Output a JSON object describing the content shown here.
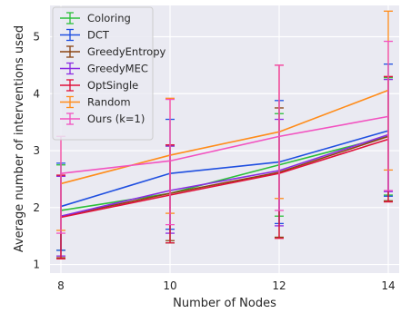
{
  "chart_data": {
    "type": "line",
    "title": "",
    "xlabel": "Number of Nodes",
    "ylabel": "Average number of interventions used",
    "x": [
      8,
      10,
      12,
      14
    ],
    "xticks": [
      "8",
      "10",
      "12",
      "14"
    ],
    "yticks": [
      "1",
      "2",
      "3",
      "4",
      "5"
    ],
    "xlim": [
      7.8,
      14.2
    ],
    "ylim": [
      0.85,
      5.55
    ],
    "grid": true,
    "legend_position": "top-left",
    "series": [
      {
        "name": "Coloring",
        "color": "#2bbf3a",
        "values": [
          1.95,
          2.25,
          2.75,
          3.25
        ],
        "lower": [
          1.25,
          1.38,
          1.85,
          2.22
        ],
        "upper": [
          2.75,
          3.08,
          3.65,
          4.28
        ]
      },
      {
        "name": "DCT",
        "color": "#1f4fe0",
        "values": [
          2.02,
          2.6,
          2.8,
          3.35
        ],
        "lower": [
          1.25,
          1.62,
          1.72,
          2.2
        ],
        "upper": [
          2.78,
          3.55,
          3.88,
          4.52
        ]
      },
      {
        "name": "GreedyEntropy",
        "color": "#8b4513",
        "values": [
          1.85,
          2.25,
          2.62,
          3.25
        ],
        "lower": [
          1.12,
          1.42,
          1.48,
          2.12
        ],
        "upper": [
          2.55,
          3.1,
          3.75,
          4.3
        ]
      },
      {
        "name": "GreedyMEC",
        "color": "#8a2be2",
        "values": [
          1.85,
          2.3,
          2.65,
          3.28
        ],
        "lower": [
          1.15,
          1.55,
          1.68,
          2.28
        ],
        "upper": [
          2.55,
          3.08,
          3.55,
          4.25
        ]
      },
      {
        "name": "OptSingle",
        "color": "#e0103a",
        "values": [
          1.83,
          2.22,
          2.6,
          3.2
        ],
        "lower": [
          1.1,
          1.38,
          1.46,
          2.1
        ],
        "upper": [
          2.57,
          3.1,
          4.5,
          4.3
        ]
      },
      {
        "name": "Random",
        "color": "#ff8c1a",
        "values": [
          2.42,
          2.92,
          3.33,
          4.06
        ],
        "lower": [
          1.6,
          1.9,
          2.16,
          2.66
        ],
        "upper": [
          3.25,
          3.92,
          4.5,
          5.45
        ]
      },
      {
        "name": "Ours (k=1)",
        "color": "#f252c0",
        "values": [
          2.6,
          2.82,
          3.25,
          3.6
        ],
        "lower": [
          1.55,
          1.7,
          1.95,
          2.3
        ],
        "upper": [
          3.25,
          3.9,
          4.5,
          4.92
        ]
      }
    ]
  }
}
